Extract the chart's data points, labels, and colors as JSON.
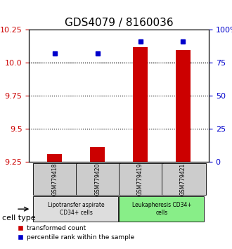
{
  "title": "GDS4079 / 8160036",
  "samples": [
    "GSM779418",
    "GSM779420",
    "GSM779419",
    "GSM779421"
  ],
  "transformed_counts": [
    9.31,
    9.36,
    10.12,
    10.1
  ],
  "percentile_ranks": [
    82,
    82,
    91,
    91
  ],
  "ylim_left": [
    9.25,
    10.25
  ],
  "ylim_right": [
    0,
    100
  ],
  "yticks_left": [
    9.25,
    9.5,
    9.75,
    10.0,
    10.25
  ],
  "yticks_right": [
    0,
    25,
    50,
    75,
    100
  ],
  "ytick_labels_right": [
    "0",
    "25",
    "50",
    "75",
    "100%"
  ],
  "bar_color": "#cc0000",
  "marker_color": "#0000cc",
  "bar_bottom": 9.25,
  "groups": [
    {
      "label": "Lipotransfer aspirate\nCD34+ cells",
      "indices": [
        0,
        1
      ],
      "color": "#dddddd"
    },
    {
      "label": "Leukapheresis CD34+\ncells",
      "indices": [
        2,
        3
      ],
      "color": "#88ee88"
    }
  ],
  "group_label": "cell type",
  "legend_red": "transformed count",
  "legend_blue": "percentile rank within the sample",
  "left_color": "#cc0000",
  "right_color": "#0000cc",
  "dotted_yticks": [
    10.0,
    9.75,
    9.5
  ],
  "title_fontsize": 11,
  "tick_fontsize": 8,
  "label_fontsize": 8
}
